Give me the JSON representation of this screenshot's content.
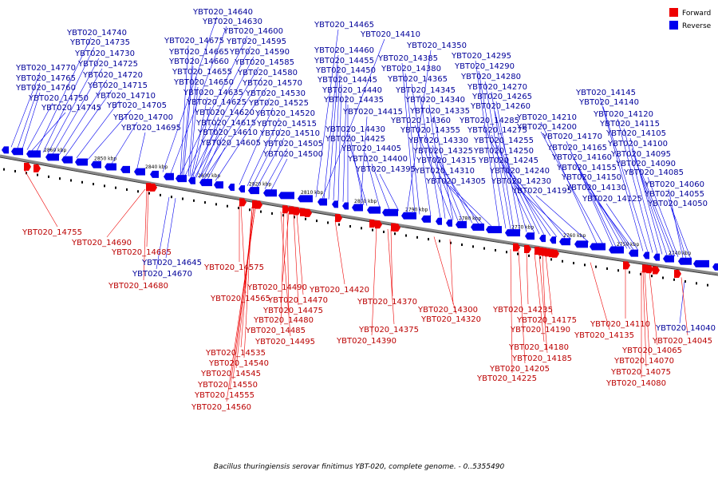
{
  "legend": {
    "forward_label": "Forward",
    "reverse_label": "Reverse",
    "forward_color": "#ee0000",
    "reverse_color": "#0000ee"
  },
  "caption": "Bacillus thuringiensis serovar finitimus YBT-020, complete genome. - 0..5355490",
  "ruler_ticks": [
    "2860 kbp",
    "2850 kbp",
    "2840 kbp",
    "2830 kbp",
    "2820 kbp",
    "2810 kbp",
    "2800 kbp",
    "2790 kbp",
    "2780 kbp",
    "2770 kbp",
    "2760 kbp",
    "2750 kbp",
    "2740 kbp"
  ],
  "reverse_genes": [
    "YBT020_14770",
    "YBT020_14765",
    "YBT020_14760",
    "YBT020_14750",
    "YBT020_14745",
    "YBT020_14740",
    "YBT020_14735",
    "YBT020_14730",
    "YBT020_14725",
    "YBT020_14720",
    "YBT020_14715",
    "YBT020_14710",
    "YBT020_14705",
    "YBT020_14700",
    "YBT020_14695",
    "YBT020_14640",
    "YBT020_14630",
    "YBT020_14600",
    "YBT020_14675",
    "YBT020_14595",
    "YBT020_14665",
    "YBT020_14590",
    "YBT020_14660",
    "YBT020_14585",
    "YBT020_14655",
    "YBT020_14580",
    "YBT020_14650",
    "YBT020_14570",
    "YBT020_14635",
    "YBT020_14530",
    "YBT020_14625",
    "YBT020_14525",
    "YBT020_14620",
    "YBT020_14520",
    "YBT020_14615",
    "YBT020_14515",
    "YBT020_14610",
    "YBT020_14510",
    "YBT020_14605",
    "YBT020_14505",
    "YBT020_14500",
    "YBT020_14465",
    "YBT020_14410",
    "YBT020_14460",
    "YBT020_14455",
    "YBT020_14450",
    "YBT020_14445",
    "YBT020_14440",
    "YBT020_14435",
    "YBT020_14415",
    "YBT020_14430",
    "YBT020_14425",
    "YBT020_14405",
    "YBT020_14400",
    "YBT020_14395",
    "YBT020_14350",
    "YBT020_14385",
    "YBT020_14380",
    "YBT020_14365",
    "YBT020_14345",
    "YBT020_14340",
    "YBT020_14335",
    "YBT020_14360",
    "YBT020_14355",
    "YBT020_14330",
    "YBT020_14325",
    "YBT020_14315",
    "YBT020_14310",
    "YBT020_14305",
    "YBT020_14295",
    "YBT020_14290",
    "YBT020_14280",
    "YBT020_14270",
    "YBT020_14265",
    "YBT020_14260",
    "YBT020_14285",
    "YBT020_14275",
    "YBT020_14255",
    "YBT020_14250",
    "YBT020_14245",
    "YBT020_14240",
    "YBT020_14230",
    "YBT020_14195",
    "YBT020_14210",
    "YBT020_14200",
    "YBT020_14170",
    "YBT020_14165",
    "YBT020_14160",
    "YBT020_14155",
    "YBT020_14150",
    "YBT020_14130",
    "YBT020_14125",
    "YBT020_14145",
    "YBT020_14140",
    "YBT020_14120",
    "YBT020_14115",
    "YBT020_14105",
    "YBT020_14100",
    "YBT020_14095",
    "YBT020_14090",
    "YBT020_14085",
    "YBT020_14060",
    "YBT020_14055",
    "YBT020_14050",
    "YBT020_14645",
    "YBT020_14670",
    "YBT020_14040"
  ],
  "forward_genes": [
    "YBT020_14755",
    "YBT020_14690",
    "YBT020_14685",
    "YBT020_14680",
    "YBT020_14575",
    "YBT020_14565",
    "YBT020_14490",
    "YBT020_14470",
    "YBT020_14475",
    "YBT020_14480",
    "YBT020_14485",
    "YBT020_14495",
    "YBT020_14535",
    "YBT020_14540",
    "YBT020_14545",
    "YBT020_14550",
    "YBT020_14555",
    "YBT020_14560",
    "YBT020_14420",
    "YBT020_14370",
    "YBT020_14375",
    "YBT020_14390",
    "YBT020_14300",
    "YBT020_14320",
    "YBT020_14235",
    "YBT020_14175",
    "YBT020_14190",
    "YBT020_14180",
    "YBT020_14185",
    "YBT020_14205",
    "YBT020_14225",
    "YBT020_14110",
    "YBT020_14135",
    "YBT020_14065",
    "YBT020_14045",
    "YBT020_14070",
    "YBT020_14075",
    "YBT020_14080"
  ]
}
